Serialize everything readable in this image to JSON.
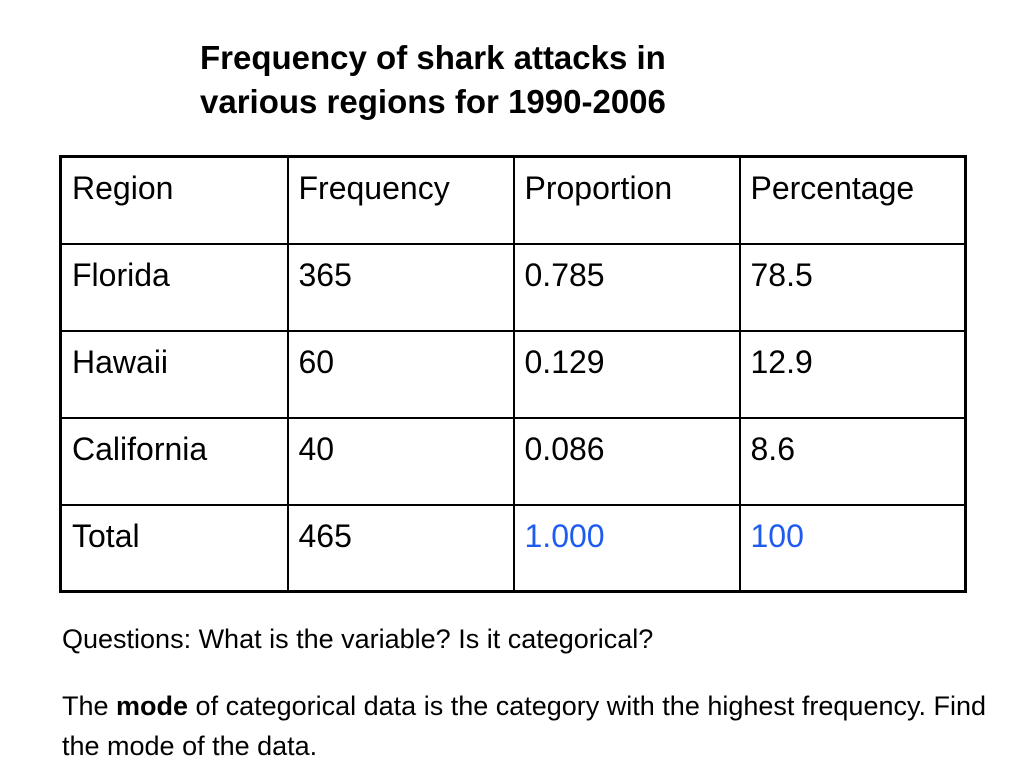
{
  "title": {
    "line1": "Frequency of shark attacks in",
    "line2": "various regions for 1990-2006"
  },
  "table": {
    "headers": [
      "Region",
      "Frequency",
      "Proportion",
      "Percentage"
    ],
    "rows": [
      [
        "Florida",
        "365",
        "0.785",
        "78.5"
      ],
      [
        "Hawaii",
        "60",
        "0.129",
        "12.9"
      ],
      [
        "California",
        "40",
        "0.086",
        "8.6"
      ],
      [
        "Total",
        "465",
        "1.000",
        "100"
      ]
    ],
    "highlight_color": "#1e5bf0"
  },
  "questions": "Questions: What is the variable? Is it categorical?",
  "mode_text": {
    "before": "The ",
    "bold": "mode",
    "after": " of categorical data is the category with the highest frequency. Find the mode of the data."
  }
}
